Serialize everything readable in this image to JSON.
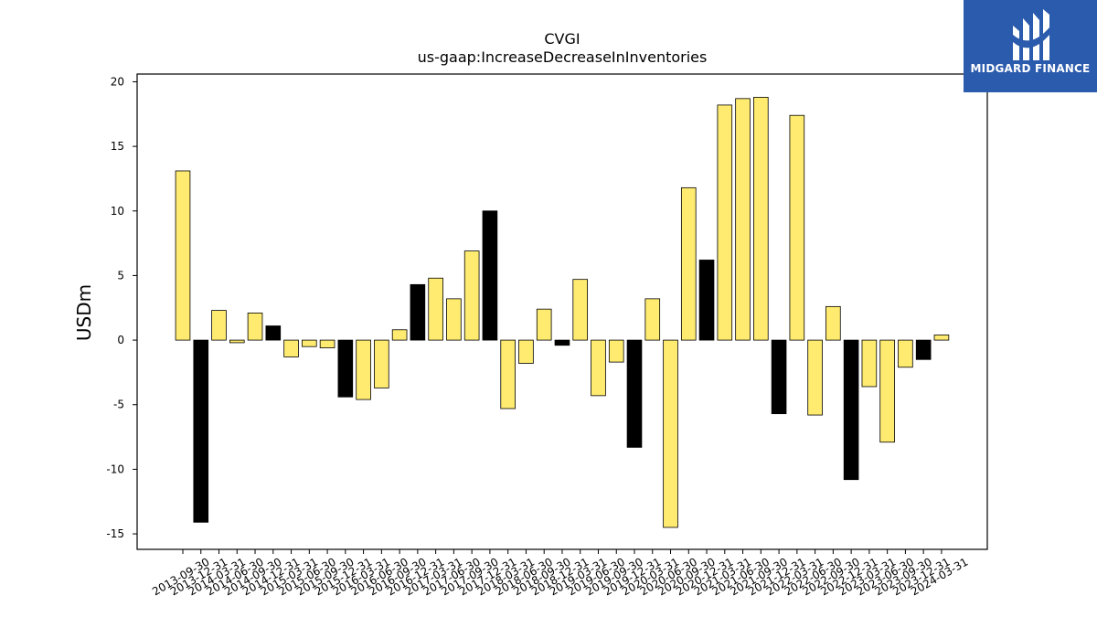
{
  "logo": {
    "text": "MIDGARD FINANCE"
  },
  "chart_data": {
    "type": "bar",
    "title": "CVGI",
    "subtitle": "us-gaap:IncreaseDecreaseInInventories",
    "xlabel": "",
    "ylabel": "USDm",
    "ylim": [
      -16.2,
      20.6
    ],
    "yticks": [
      -15,
      -10,
      -5,
      0,
      5,
      10,
      15,
      20
    ],
    "grid": false,
    "colors": {
      "default": "#ffeb70",
      "q4": "#000000",
      "edge": "#000000"
    },
    "categories": [
      "2013-09-30",
      "2013-12-31",
      "2014-03-31",
      "2014-06-30",
      "2014-09-30",
      "2014-12-31",
      "2015-03-31",
      "2015-06-30",
      "2015-09-30",
      "2015-12-31",
      "2016-03-31",
      "2016-06-30",
      "2016-09-30",
      "2016-12-31",
      "2017-03-31",
      "2017-06-30",
      "2017-09-30",
      "2017-12-31",
      "2018-03-31",
      "2018-06-30",
      "2018-09-30",
      "2018-12-31",
      "2019-03-31",
      "2019-06-30",
      "2019-09-30",
      "2019-12-31",
      "2020-03-31",
      "2020-06-30",
      "2020-09-30",
      "2020-12-31",
      "2021-03-31",
      "2021-06-30",
      "2021-09-30",
      "2021-12-31",
      "2022-03-31",
      "2022-06-30",
      "2022-09-30",
      "2022-12-31",
      "2023-03-31",
      "2023-06-30",
      "2023-09-30",
      "2023-12-31",
      "2024-03-31"
    ],
    "values": [
      13.1,
      -14.1,
      2.3,
      -0.2,
      2.1,
      1.1,
      -1.3,
      -0.5,
      -0.6,
      -4.4,
      -4.6,
      -3.7,
      0.8,
      4.3,
      4.8,
      3.2,
      6.9,
      10.0,
      -5.3,
      -1.8,
      2.4,
      -0.4,
      4.7,
      -4.3,
      -1.7,
      -8.3,
      3.2,
      -14.5,
      11.8,
      6.2,
      18.2,
      18.7,
      18.8,
      -5.7,
      17.4,
      -5.8,
      2.6,
      -10.8,
      -3.6,
      -7.9,
      -2.1,
      -1.5,
      0.4
    ]
  }
}
